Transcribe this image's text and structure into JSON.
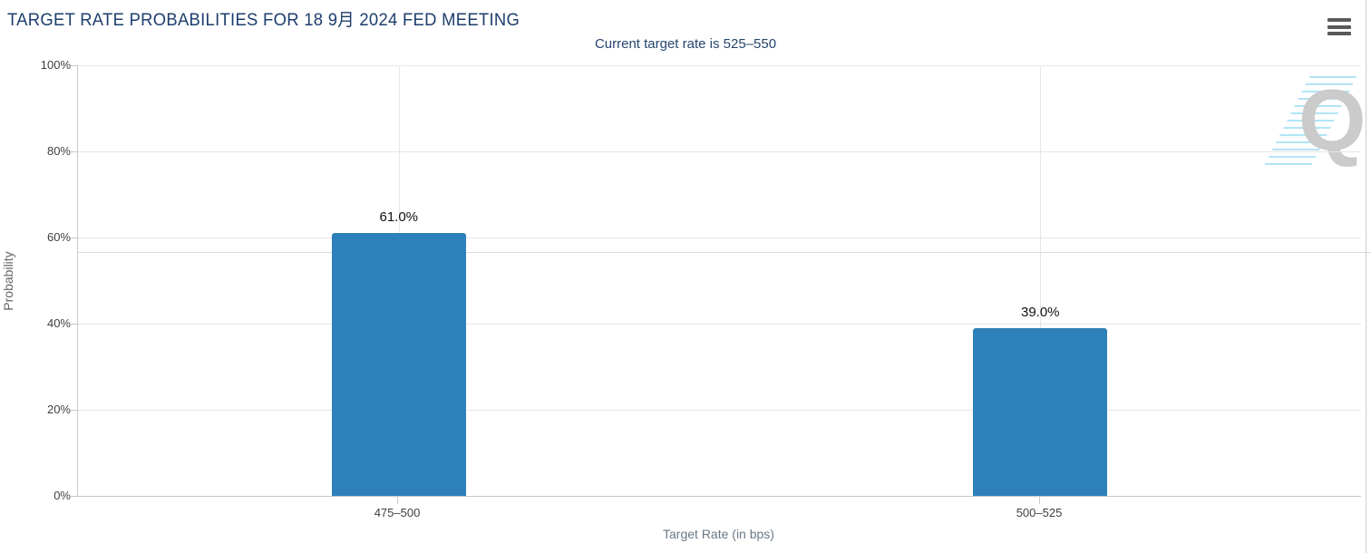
{
  "header": {
    "title": "TARGET RATE PROBABILITIES FOR 18 9月 2024 FED MEETING",
    "subtitle": "Current target rate is 525–550",
    "menu_icon": "hamburger-icon"
  },
  "watermark": {
    "letter": "Q"
  },
  "colors": {
    "bar": "#2d80b9",
    "title_text": "#1d3e6e",
    "subtitle_text": "#26466f",
    "grid": "#e6e6e6",
    "axis": "#c9c9c9",
    "tick_text": "#404040",
    "axis_title_text": "#6a7886",
    "value_text": "#111111",
    "watermark_gray": "#cbcbcb",
    "watermark_cyan": "#a8e2f4",
    "menu_icon": "#5a5a5a",
    "border": "#cccccc"
  },
  "chart_data": {
    "type": "bar",
    "title": "TARGET RATE PROBABILITIES FOR 18 9月 2024 FED MEETING",
    "subtitle": "Current target rate is 525–550",
    "categories": [
      "475–500",
      "500–525"
    ],
    "values": [
      61.0,
      39.0
    ],
    "value_labels": [
      "61.0%",
      "39.0%"
    ],
    "xlabel": "Target Rate (in bps)",
    "ylabel": "Probability",
    "yticks": [
      "0%",
      "20%",
      "40%",
      "60%",
      "80%",
      "100%"
    ],
    "ylim": [
      0,
      100
    ],
    "grid": true,
    "legend": false,
    "bar_color": "#2d80b9"
  }
}
